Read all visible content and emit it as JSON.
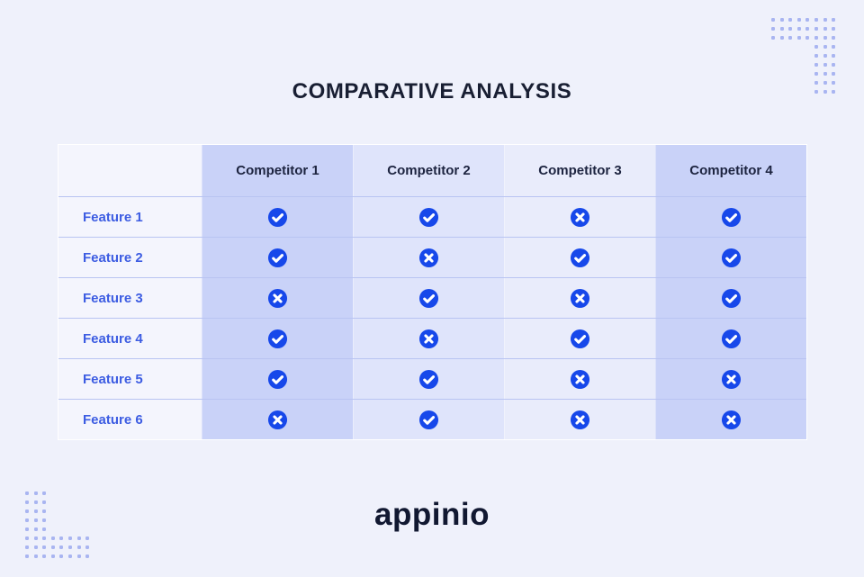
{
  "title": "COMPARATIVE ANALYSIS",
  "chart_data": {
    "type": "table",
    "title": "COMPARATIVE ANALYSIS",
    "columns": [
      "Competitor 1",
      "Competitor 2",
      "Competitor 3",
      "Competitor 4"
    ],
    "row_labels": [
      "Feature 1",
      "Feature 2",
      "Feature 3",
      "Feature 4",
      "Feature 5",
      "Feature 6"
    ],
    "values": [
      [
        "check",
        "check",
        "cross",
        "check"
      ],
      [
        "check",
        "cross",
        "check",
        "check"
      ],
      [
        "cross",
        "check",
        "cross",
        "check"
      ],
      [
        "check",
        "cross",
        "check",
        "check"
      ],
      [
        "check",
        "check",
        "cross",
        "cross"
      ],
      [
        "cross",
        "check",
        "cross",
        "cross"
      ]
    ],
    "legend_position": "none",
    "grid": "row-separators"
  },
  "logo": {
    "text": "appinio"
  },
  "icons": {
    "check": "check-icon",
    "cross": "cross-icon"
  },
  "colors": {
    "background": "#eff1fb",
    "column_dark": "#c9d2f8",
    "column_medium": "#dfe4fb",
    "column_light": "#e9ecfb",
    "feature_column": "#f4f5fd",
    "icon_blue": "#1748ea",
    "icon_glyph": "#ffffff",
    "feature_text": "#3c5ce2",
    "header_text": "#1d2440",
    "title_text": "#191f33",
    "logo_text": "#111831",
    "dots": "#a9b5f1"
  }
}
